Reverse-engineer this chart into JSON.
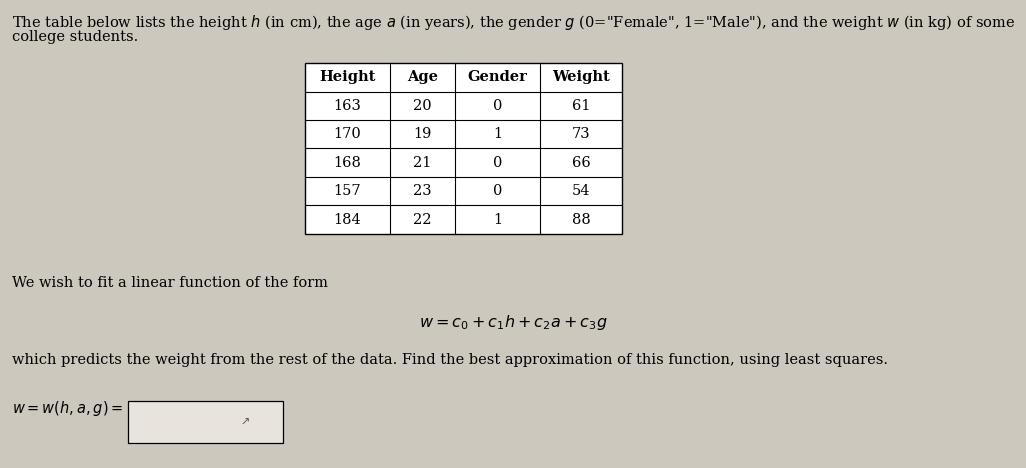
{
  "background_color": "#cdc8be",
  "title_line1": "The table below lists the height $h$ (in cm), the age $a$ (in years), the gender $g$ (0=\"Female\", 1=\"Male\"), and the weight $w$ (in kg) of some",
  "title_line2": "college students.",
  "table_headers": [
    "Height",
    "Age",
    "Gender",
    "Weight"
  ],
  "table_data": [
    [
      163,
      20,
      0,
      61
    ],
    [
      170,
      19,
      1,
      73
    ],
    [
      168,
      21,
      0,
      66
    ],
    [
      157,
      23,
      0,
      54
    ],
    [
      184,
      22,
      1,
      88
    ]
  ],
  "middle_text": "We wish to fit a linear function of the form",
  "equation": "$w = c_0 + c_1h + c_2a + c_3g$",
  "bottom_text": "which predicts the weight from the rest of the data. Find the best approximation of this function, using least squares.",
  "answer_label": "$w = w(h, a, g) =$",
  "font_size_body": 10.5,
  "font_size_table": 10.5,
  "font_size_equation": 11.5
}
